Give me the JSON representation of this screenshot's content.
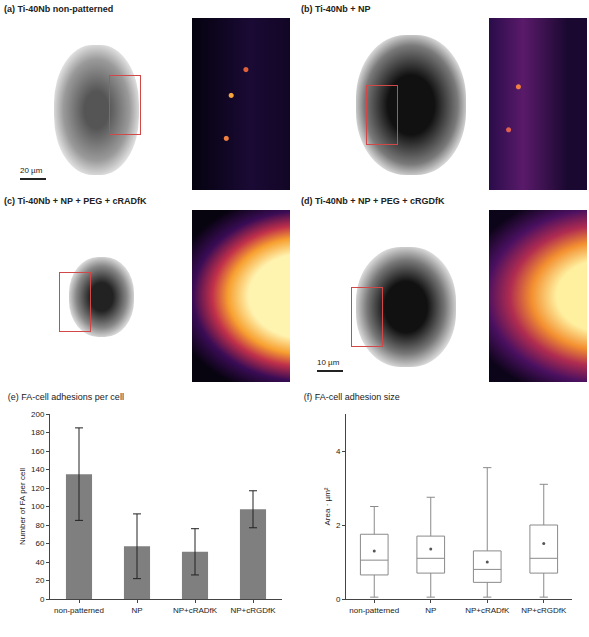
{
  "panels": [
    {
      "title": "(a) Ti-40Nb non-patterned",
      "scale_bar": "20 µm"
    },
    {
      "title": "(b) Ti-40Nb + NP"
    },
    {
      "title": "(c) Ti-40Nb + NP + PEG + cRADfK"
    },
    {
      "title": "(d) Ti-40Nb + NP + PEG + cRGDfK",
      "scale_bar": "10 µm"
    }
  ],
  "chart_data": [
    {
      "type": "bar",
      "title": "(e) FA-cell adhesions per cell",
      "y_label": "Number of FA per cell",
      "categories": [
        "non-patterned",
        "NP",
        "NP+cRADfK",
        "NP+cRGDfK"
      ],
      "values": [
        135,
        57,
        51,
        97
      ],
      "errors": [
        50,
        35,
        25,
        20
      ],
      "color": "#7f7f7f",
      "ylim": [
        0,
        200
      ],
      "yticks": [
        0,
        20,
        40,
        60,
        80,
        100,
        120,
        140,
        160,
        180,
        200
      ]
    },
    {
      "type": "box",
      "title": "(f) FA-cell adhesion size",
      "y_label": "Area · µm²",
      "categories": [
        "non-patterned",
        "NP",
        "NP+cRADfK",
        "NP+cRGDfK"
      ],
      "lower": [
        0.05,
        0.05,
        0.05,
        0.05
      ],
      "q1": [
        0.65,
        0.7,
        0.45,
        0.7
      ],
      "median": [
        1.05,
        1.1,
        0.8,
        1.1
      ],
      "q3": [
        1.75,
        1.7,
        1.3,
        2.0
      ],
      "upper": [
        2.5,
        2.75,
        3.55,
        3.1
      ],
      "mean": [
        1.3,
        1.35,
        1.0,
        1.5
      ],
      "color": "#8a8a8a",
      "ylim": [
        0,
        5
      ],
      "yticks": [
        0,
        2,
        4
      ]
    }
  ]
}
